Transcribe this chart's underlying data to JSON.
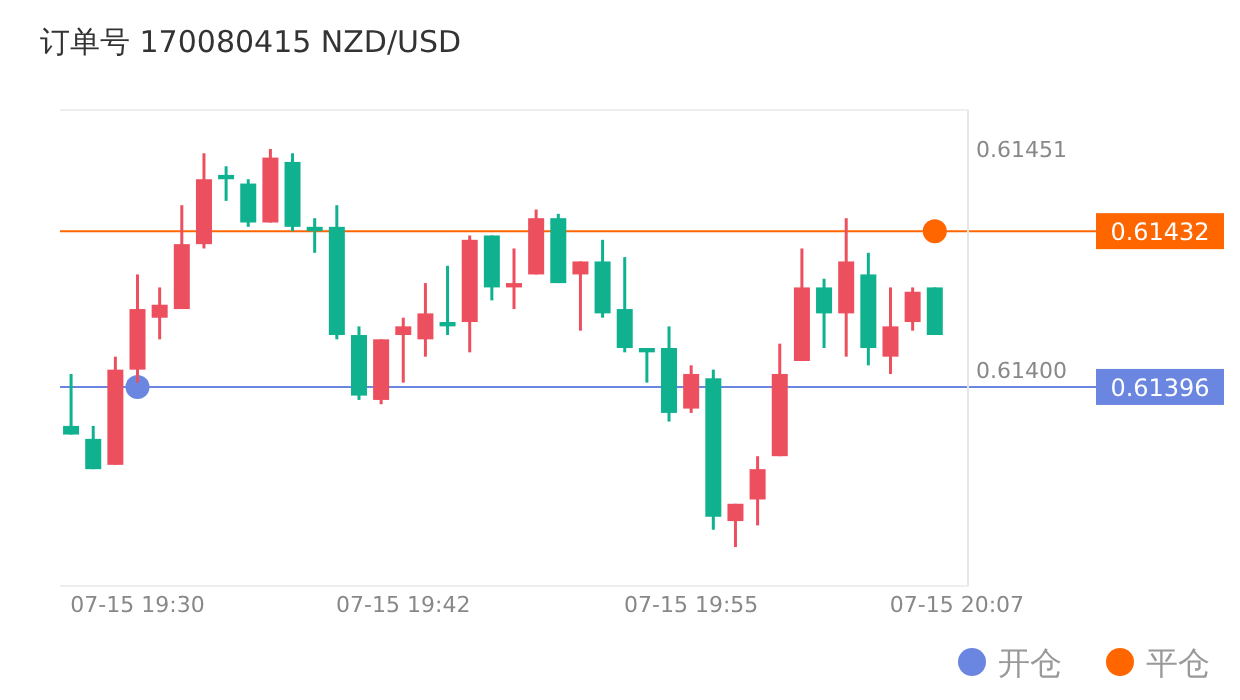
{
  "chart_data": {
    "type": "candlestick",
    "title": "订单号 170080415     NZD/USD",
    "categories": [
      null,
      null,
      null,
      "07-15 19:30",
      null,
      null,
      null,
      null,
      null,
      null,
      null,
      null,
      null,
      null,
      null,
      "07-15 19:42",
      null,
      null,
      null,
      null,
      null,
      null,
      null,
      null,
      null,
      null,
      null,
      null,
      "07-15 19:55",
      null,
      null,
      null,
      null,
      null,
      null,
      null,
      null,
      null,
      null,
      null,
      "07-15 20:07"
    ],
    "ohlc": [
      [
        0.61387,
        0.61399,
        0.61385,
        0.61385
      ],
      [
        0.61384,
        0.61387,
        0.61377,
        0.61377
      ],
      [
        0.61378,
        0.61403,
        0.61378,
        0.614
      ],
      [
        0.614,
        0.61422,
        0.61397,
        0.61414
      ],
      [
        0.61412,
        0.61419,
        0.61407,
        0.61415
      ],
      [
        0.61414,
        0.61438,
        0.61414,
        0.61429
      ],
      [
        0.61429,
        0.6145,
        0.61428,
        0.61444
      ],
      [
        0.61445,
        0.61447,
        0.61439,
        0.61444
      ],
      [
        0.61443,
        0.61444,
        0.61433,
        0.61434
      ],
      [
        0.61434,
        0.61451,
        0.61434,
        0.61449
      ],
      [
        0.61448,
        0.6145,
        0.61432,
        0.61433
      ],
      [
        0.61433,
        0.61435,
        0.61427,
        0.61432
      ],
      [
        0.61433,
        0.61438,
        0.61407,
        0.61408
      ],
      [
        0.61408,
        0.6141,
        0.61393,
        0.61394
      ],
      [
        0.61393,
        0.61407,
        0.61392,
        0.61407
      ],
      [
        0.61408,
        0.61412,
        0.61397,
        0.6141
      ],
      [
        0.61407,
        0.6142,
        0.61403,
        0.61413
      ],
      [
        0.61411,
        0.61424,
        0.61408,
        0.6141
      ],
      [
        0.61411,
        0.61431,
        0.61404,
        0.6143
      ],
      [
        0.61431,
        0.61431,
        0.61416,
        0.61419
      ],
      [
        0.61419,
        0.61428,
        0.61414,
        0.6142
      ],
      [
        0.61422,
        0.61437,
        0.61422,
        0.61435
      ],
      [
        0.61435,
        0.61436,
        0.6142,
        0.6142
      ],
      [
        0.61422,
        0.61425,
        0.61409,
        0.61425
      ],
      [
        0.61425,
        0.6143,
        0.61412,
        0.61413
      ],
      [
        0.61414,
        0.61426,
        0.61404,
        0.61405
      ],
      [
        0.61405,
        0.61405,
        0.61397,
        0.61404
      ],
      [
        0.61405,
        0.6141,
        0.61388,
        0.6139
      ],
      [
        0.61391,
        0.61401,
        0.6139,
        0.61399
      ],
      [
        0.61398,
        0.614,
        0.61363,
        0.61366
      ],
      [
        0.61365,
        0.61369,
        0.61359,
        0.61369
      ],
      [
        0.6137,
        0.6138,
        0.61364,
        0.61377
      ],
      [
        0.6138,
        0.61406,
        0.6138,
        0.61399
      ],
      [
        0.61402,
        0.61428,
        0.61402,
        0.61419
      ],
      [
        0.61419,
        0.61421,
        0.61405,
        0.61413
      ],
      [
        0.61413,
        0.61435,
        0.61403,
        0.61425
      ],
      [
        0.61422,
        0.61427,
        0.61401,
        0.61405
      ],
      [
        0.61403,
        0.61419,
        0.61399,
        0.6141
      ],
      [
        0.61411,
        0.61419,
        0.61409,
        0.61418
      ],
      [
        0.61419,
        0.61419,
        0.61408,
        0.61408
      ],
      null
    ],
    "colors": [
      "#0fb18f",
      "#0fb18f",
      "#ec4f5e",
      "#ec4f5e",
      "#ec4f5e",
      "#ec4f5e",
      "#ec4f5e",
      "#0fb18f",
      "#0fb18f",
      "#ec4f5e",
      "#0fb18f",
      "#0fb18f",
      "#0fb18f",
      "#0fb18f",
      "#ec4f5e",
      "#ec4f5e",
      "#ec4f5e",
      "#0fb18f",
      "#ec4f5e",
      "#0fb18f",
      "#ec4f5e",
      "#ec4f5e",
      "#0fb18f",
      "#ec4f5e",
      "#0fb18f",
      "#0fb18f",
      "#0fb18f",
      "#0fb18f",
      "#ec4f5e",
      "#0fb18f",
      "#ec4f5e",
      "#ec4f5e",
      "#ec4f5e",
      "#ec4f5e",
      "#0fb18f",
      "#ec4f5e",
      "#0fb18f",
      "#ec4f5e",
      "#ec4f5e",
      "#0fb18f",
      null
    ],
    "ylim": [
      0.6135,
      0.6146
    ],
    "yticks": [
      {
        "value": 0.61451,
        "label": "0.61451"
      },
      {
        "value": 0.614,
        "label": "0.61400"
      }
    ],
    "series": [
      {
        "name": "开仓",
        "type": "scatter",
        "color": "#6a86e0",
        "values": [
          null,
          null,
          null,
          0.61396,
          null,
          null,
          null,
          null,
          null,
          null,
          null,
          null,
          null,
          null,
          null,
          null,
          null,
          null,
          null,
          null,
          null,
          null,
          null,
          null,
          null,
          null,
          null,
          null,
          null,
          null,
          null,
          null,
          null,
          null,
          null,
          null,
          null,
          null,
          null,
          null,
          null
        ]
      },
      {
        "name": "平仓",
        "type": "scatter",
        "color": "#ff6600",
        "values": [
          null,
          null,
          null,
          null,
          null,
          null,
          null,
          null,
          null,
          null,
          null,
          null,
          null,
          null,
          null,
          null,
          null,
          null,
          null,
          null,
          null,
          null,
          null,
          null,
          null,
          null,
          null,
          null,
          null,
          null,
          null,
          null,
          null,
          null,
          null,
          null,
          null,
          null,
          null,
          0.61432,
          null
        ]
      }
    ],
    "ref_lines": [
      {
        "axis": "y",
        "value": 0.61432,
        "label": "0.61432",
        "color": "#ff6600"
      },
      {
        "axis": "y",
        "value": 0.61396,
        "label": "0.61396",
        "color": "#6a86e0"
      }
    ],
    "marker": "circle",
    "legend": "bottom right"
  }
}
